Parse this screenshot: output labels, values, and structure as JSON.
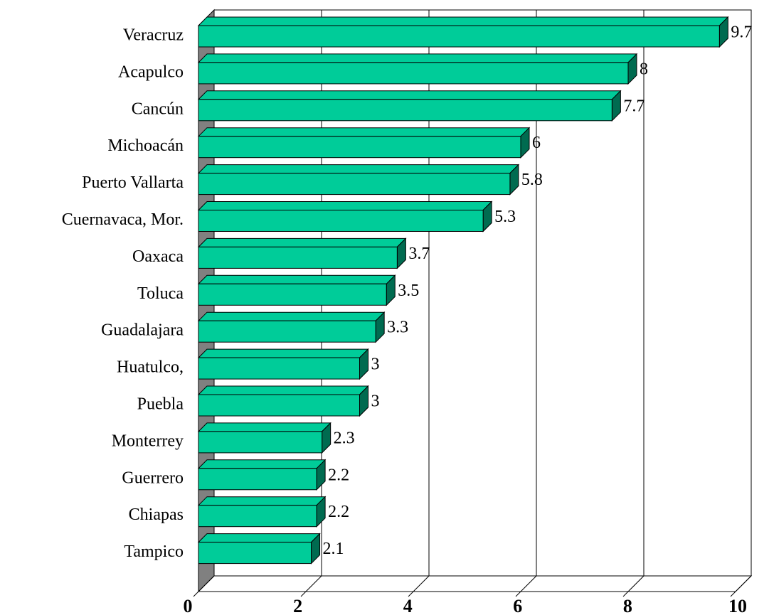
{
  "chart_data": {
    "type": "bar3d_horizontal",
    "categories": [
      "Veracruz",
      "Acapulco",
      "Cancún",
      "Michoacán",
      "Puerto Vallarta",
      "Cuernavaca, Mor.",
      "Oaxaca",
      "Toluca",
      "Guadalajara",
      "Huatulco,",
      "Puebla",
      "Monterrey",
      "Guerrero",
      "Chiapas",
      "Tampico"
    ],
    "values": [
      9.7,
      8,
      7.7,
      6,
      5.8,
      5.3,
      3.7,
      3.5,
      3.3,
      3,
      3,
      2.3,
      2.2,
      2.2,
      2.1
    ],
    "color": "#00cc99",
    "side_color": "#006b50",
    "wall_color": "#808080",
    "xlim": [
      0,
      10
    ],
    "xticks": [
      0,
      2,
      4,
      6,
      8,
      10
    ],
    "grid": true
  }
}
